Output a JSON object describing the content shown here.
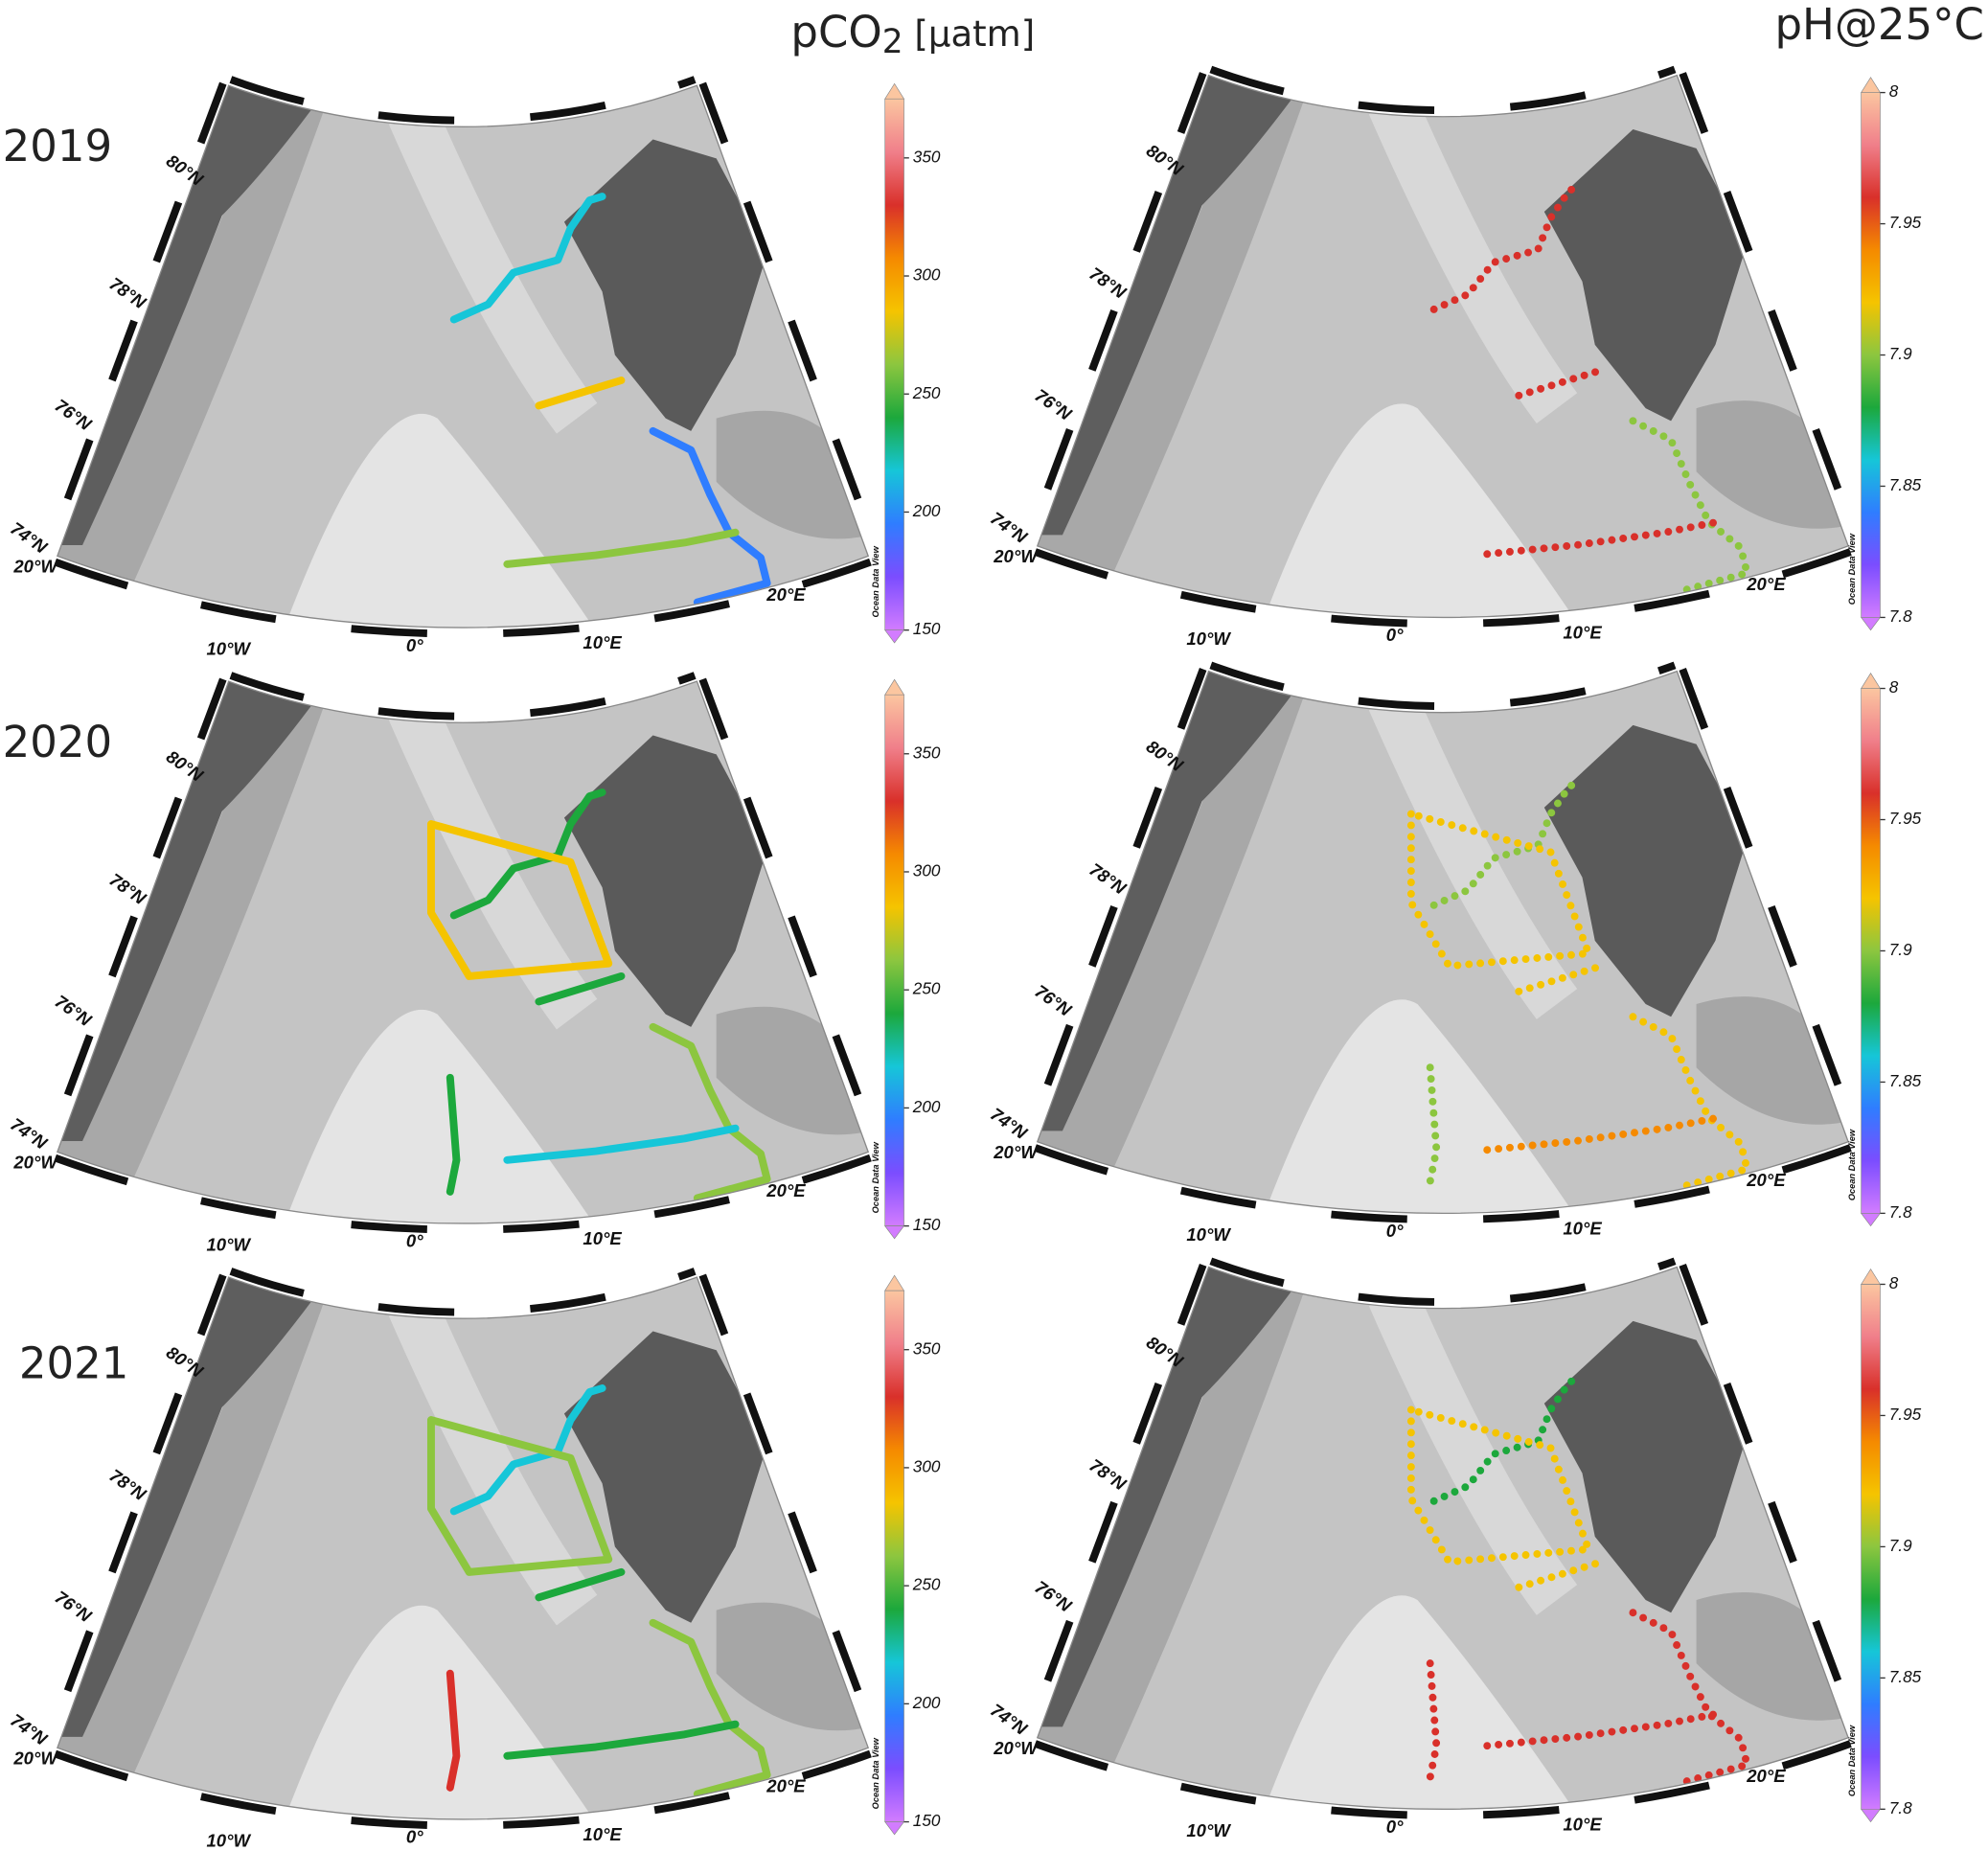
{
  "columns": [
    {
      "title": "pCO",
      "title_sub": "2",
      "title_unit": " [µatm]",
      "colorbar": {
        "lim": [
          150,
          375
        ],
        "ticks": [
          150,
          200,
          250,
          300,
          350
        ]
      }
    },
    {
      "title": "pH@25°C",
      "colorbar": {
        "lim": [
          7.8,
          8
        ],
        "ticks": [
          7.8,
          7.85,
          7.9,
          7.95,
          8
        ]
      }
    }
  ],
  "rows": [
    {
      "year": "2019"
    },
    {
      "year": "2020"
    },
    {
      "year": "2021"
    }
  ],
  "lat_labels": [
    "80°N",
    "78°N",
    "76°N",
    "74°N"
  ],
  "lon_labels": [
    "20°W",
    "10°W",
    "0°",
    "10°E",
    "20°E"
  ],
  "watermark": "Ocean Data View",
  "colormap": [
    "#d27cff",
    "#7b4dff",
    "#2f7dff",
    "#16c6d8",
    "#1ca83c",
    "#8cc63f",
    "#f5c400",
    "#f58a00",
    "#d9302a",
    "#f07f8a",
    "#fbc6a0"
  ]
}
